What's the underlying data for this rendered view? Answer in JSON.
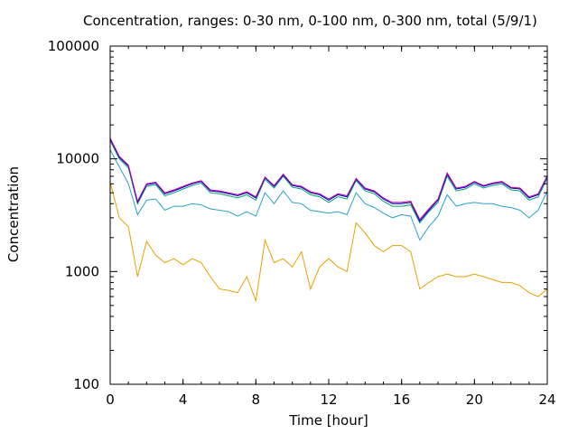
{
  "chart_data": {
    "type": "line",
    "title": "Concentration, ranges: 0-30 nm, 0-100 nm, 0-300 nm, total (5/9/1)",
    "xlabel": "Time [hour]",
    "ylabel": "Concentration",
    "xlim": [
      0,
      24
    ],
    "ylim": [
      100,
      100000
    ],
    "yscale": "log",
    "xticks": [
      "0",
      "4",
      "8",
      "12",
      "16",
      "20",
      "24"
    ],
    "yticks": [
      "100",
      "1000",
      "10000",
      "100000"
    ],
    "grid": false,
    "x": [
      0,
      0.5,
      1,
      1.5,
      2,
      2.5,
      3,
      3.5,
      4,
      4.5,
      5,
      5.5,
      6,
      6.5,
      7,
      7.5,
      8,
      8.5,
      9,
      9.5,
      10,
      10.5,
      11,
      11.5,
      12,
      12.5,
      13,
      13.5,
      14,
      14.5,
      15,
      15.5,
      16,
      16.5,
      17,
      17.5,
      18,
      18.5,
      19,
      19.5,
      20,
      20.5,
      21,
      21.5,
      22,
      22.5,
      23,
      23.5,
      24
    ],
    "series": [
      {
        "color": "#e8a000",
        "values": [
          6200,
          3000,
          2500,
          900,
          1850,
          1400,
          1200,
          1300,
          1150,
          1300,
          1200,
          900,
          700,
          680,
          650,
          900,
          550,
          1900,
          1200,
          1300,
          1100,
          1500,
          700,
          1100,
          1300,
          1100,
          1000,
          2700,
          2200,
          1700,
          1500,
          1700,
          1700,
          1500,
          700,
          800,
          900,
          950,
          900,
          900,
          950,
          900,
          850,
          800,
          800,
          750,
          650,
          600,
          700
        ]
      },
      {
        "color": "#2aa0d0",
        "values": [
          12000,
          8500,
          6000,
          3200,
          4300,
          4400,
          3500,
          3800,
          3800,
          4000,
          3900,
          3600,
          3500,
          3400,
          3100,
          3400,
          3100,
          5000,
          4000,
          5200,
          4100,
          4000,
          3500,
          3400,
          3300,
          3400,
          3200,
          5000,
          4000,
          3700,
          3300,
          3000,
          3200,
          3100,
          1900,
          2500,
          3100,
          4800,
          3800,
          4000,
          4100,
          4000,
          4000,
          3800,
          3700,
          3500,
          3000,
          3500,
          5200
        ]
      },
      {
        "color": "#00a080",
        "values": [
          14500,
          10000,
          8300,
          4000,
          5700,
          5900,
          4700,
          5000,
          5400,
          5800,
          6100,
          5000,
          4900,
          4700,
          4500,
          4800,
          4300,
          6600,
          5500,
          7000,
          5600,
          5400,
          4800,
          4600,
          4100,
          4600,
          4400,
          6400,
          5200,
          4900,
          4200,
          3800,
          3800,
          3900,
          2700,
          3400,
          4100,
          7000,
          5200,
          5400,
          6000,
          5500,
          5800,
          6000,
          5300,
          5200,
          4300,
          4600,
          6700
        ]
      },
      {
        "color": "#0000c0",
        "values": [
          15000,
          10300,
          8600,
          4100,
          5900,
          6100,
          4900,
          5200,
          5600,
          6000,
          6300,
          5200,
          5100,
          4900,
          4700,
          5000,
          4500,
          6800,
          5700,
          7200,
          5800,
          5600,
          5000,
          4800,
          4300,
          4800,
          4600,
          6600,
          5400,
          5100,
          4400,
          4000,
          4000,
          4100,
          2800,
          3500,
          4300,
          7300,
          5400,
          5600,
          6200,
          5700,
          6000,
          6200,
          5500,
          5400,
          4500,
          4800,
          7000
        ]
      },
      {
        "color": "#c000a0",
        "values": [
          15300,
          10500,
          8800,
          4200,
          6000,
          6200,
          5000,
          5300,
          5700,
          6100,
          6400,
          5300,
          5200,
          5000,
          4800,
          5100,
          4600,
          6900,
          5800,
          7300,
          5900,
          5700,
          5100,
          4900,
          4400,
          4900,
          4700,
          6700,
          5500,
          5200,
          4500,
          4100,
          4100,
          4200,
          2900,
          3600,
          4400,
          7500,
          5500,
          5700,
          6300,
          5800,
          6100,
          6300,
          5600,
          5500,
          4600,
          4900,
          7100
        ]
      }
    ]
  }
}
